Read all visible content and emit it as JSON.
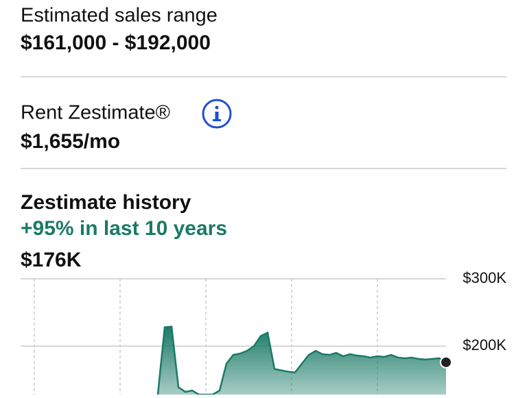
{
  "sales_range": {
    "label": "Estimated sales range",
    "value": "$161,000 - $192,000"
  },
  "rent": {
    "label": "Rent Zestimate®",
    "value": "$1,655/mo"
  },
  "chart_data": {
    "type": "area",
    "title": "Zestimate history",
    "subtitle": "+95% in last 10 years",
    "annotation": "$176K",
    "series": [
      {
        "name": "Zestimate",
        "color": "#1a7a66",
        "values": [
          128000,
          228000,
          229000,
          139000,
          132000,
          134000,
          128000,
          128000,
          128000,
          134000,
          174000,
          187000,
          189000,
          193000,
          200000,
          215000,
          220000,
          166000,
          164000,
          162000,
          161000,
          174000,
          187000,
          193000,
          188000,
          187000,
          190000,
          185000,
          188000,
          186000,
          185000,
          183000,
          185000,
          184000,
          187000,
          183000,
          182000,
          183000,
          181000,
          180000,
          181000,
          182000,
          176000
        ]
      }
    ],
    "ylim": [
      128000,
      300000
    ],
    "yticks": [
      {
        "value": 200000,
        "label": "$200K"
      },
      {
        "value": 300000,
        "label": "$300K"
      }
    ],
    "grid": true
  }
}
